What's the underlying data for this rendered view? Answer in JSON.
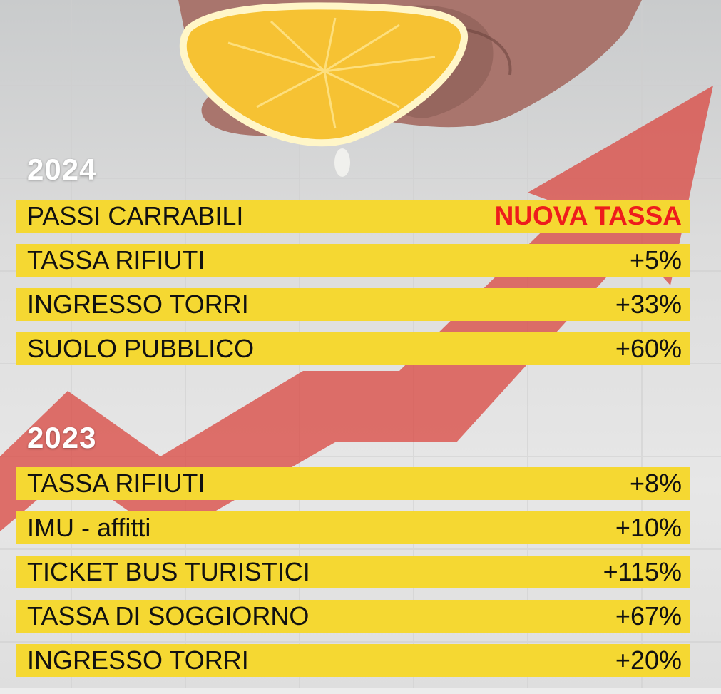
{
  "sections": [
    {
      "year": "2024",
      "rows": [
        {
          "label": "PASSI CARRABILI",
          "value": "NUOVA TASSA"
        },
        {
          "label": "TASSA RIFIUTI",
          "value": "+5%"
        },
        {
          "label": "INGRESSO TORRI",
          "value": "+33%"
        },
        {
          "label": "SUOLO PUBBLICO",
          "value": "+60%"
        }
      ]
    },
    {
      "year": "2023",
      "rows": [
        {
          "label": "TASSA RIFIUTI",
          "value": "+8%"
        },
        {
          "label": "IMU - affitti",
          "value": "+10%"
        },
        {
          "label": "TICKET BUS TURISTICI",
          "value": "+115%"
        },
        {
          "label": "TASSA DI SOGGIORNO",
          "value": "+67%"
        },
        {
          "label": "INGRESSO TORRI",
          "value": "+20%"
        }
      ]
    }
  ],
  "colors": {
    "row_background": "#f5d832",
    "highlight_text": "#ee1c1c",
    "year_text": "#ffffff",
    "arrow": "#d9453f",
    "lemon": "#f6c233"
  },
  "icons": [
    "lemon-icon",
    "hand-icon",
    "rising-arrow-icon"
  ]
}
